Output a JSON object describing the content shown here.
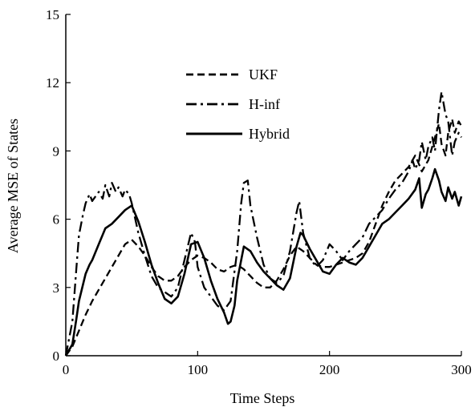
{
  "chart_data": {
    "type": "line",
    "xlabel": "Time Steps",
    "ylabel": "Average MSE of  States",
    "xlim": [
      0,
      300
    ],
    "ylim": [
      0,
      15
    ],
    "xticks": [
      "0",
      "100",
      "200",
      "300"
    ],
    "yticks": [
      "0",
      "3",
      "6",
      "9",
      "12",
      "15"
    ],
    "grid": false,
    "legend_position": "upper-left-center",
    "series": [
      {
        "name": "UKF",
        "style": "dashed",
        "color": "#000000",
        "x": [
          0,
          5,
          10,
          15,
          20,
          25,
          30,
          35,
          40,
          45,
          50,
          55,
          60,
          65,
          70,
          75,
          80,
          85,
          90,
          95,
          100,
          105,
          110,
          115,
          120,
          125,
          130,
          135,
          140,
          145,
          150,
          155,
          160,
          165,
          170,
          175,
          180,
          185,
          190,
          195,
          200,
          205,
          210,
          215,
          220,
          225,
          230,
          235,
          240,
          245,
          250,
          255,
          260,
          263,
          265,
          268,
          270,
          275,
          280,
          283,
          285,
          288,
          290,
          293,
          295,
          298,
          300
        ],
        "y": [
          0,
          0.4,
          1.1,
          1.8,
          2.4,
          2.9,
          3.4,
          3.9,
          4.4,
          4.9,
          5.1,
          4.8,
          4.4,
          3.9,
          3.5,
          3.3,
          3.3,
          3.5,
          3.9,
          4.2,
          4.4,
          4.3,
          4.1,
          3.8,
          3.7,
          3.9,
          4.0,
          3.8,
          3.5,
          3.2,
          3.0,
          3.0,
          3.3,
          3.8,
          4.4,
          4.8,
          4.6,
          4.3,
          4.0,
          3.9,
          3.9,
          4.0,
          4.1,
          4.2,
          4.3,
          4.5,
          5.0,
          5.8,
          6.6,
          7.2,
          7.7,
          8.0,
          8.3,
          8.6,
          8.8,
          8.4,
          8.1,
          8.6,
          9.6,
          10.2,
          9.3,
          8.8,
          9.8,
          10.4,
          9.8,
          10.3,
          10.1
        ]
      },
      {
        "name": "H-inf",
        "style": "dashdot",
        "color": "#000000",
        "x": [
          0,
          5,
          8,
          10,
          13,
          15,
          18,
          20,
          25,
          28,
          30,
          33,
          35,
          38,
          40,
          43,
          45,
          48,
          50,
          55,
          60,
          65,
          70,
          75,
          80,
          85,
          90,
          95,
          98,
          100,
          105,
          110,
          115,
          120,
          125,
          130,
          133,
          135,
          138,
          140,
          145,
          150,
          155,
          160,
          165,
          170,
          175,
          177,
          180,
          185,
          190,
          195,
          200,
          205,
          210,
          215,
          220,
          225,
          230,
          235,
          240,
          245,
          250,
          255,
          260,
          263,
          265,
          268,
          270,
          273,
          275,
          278,
          280,
          283,
          285,
          288,
          290,
          293,
          295,
          298,
          300
        ],
        "y": [
          0,
          1.5,
          3.8,
          5.3,
          6.2,
          6.7,
          7.1,
          6.8,
          7.2,
          6.9,
          7.5,
          7.0,
          7.6,
          7.2,
          7.4,
          7.0,
          7.3,
          7.1,
          6.7,
          5.4,
          4.4,
          3.5,
          3.0,
          2.8,
          2.6,
          3.0,
          4.2,
          5.4,
          5.0,
          3.9,
          3.0,
          2.6,
          2.2,
          2.0,
          2.4,
          4.6,
          6.7,
          7.6,
          7.7,
          6.6,
          5.2,
          4.0,
          3.4,
          3.2,
          3.5,
          4.6,
          6.3,
          6.8,
          5.4,
          4.3,
          3.9,
          4.2,
          4.9,
          4.6,
          4.2,
          4.6,
          4.9,
          5.2,
          5.8,
          6.1,
          6.4,
          6.9,
          7.3,
          7.6,
          8.1,
          8.6,
          8.2,
          8.6,
          9.4,
          8.6,
          9.2,
          9.6,
          9.0,
          10.8,
          11.6,
          10.6,
          10.3,
          8.8,
          9.4,
          9.8,
          9.6
        ]
      },
      {
        "name": "Hybrid",
        "style": "solid",
        "color": "#000000",
        "x": [
          0,
          5,
          8,
          10,
          15,
          18,
          20,
          25,
          30,
          35,
          40,
          45,
          50,
          55,
          60,
          65,
          70,
          75,
          80,
          85,
          90,
          95,
          100,
          105,
          110,
          115,
          120,
          123,
          125,
          128,
          130,
          135,
          140,
          145,
          150,
          155,
          160,
          165,
          170,
          175,
          178,
          180,
          185,
          190,
          195,
          200,
          205,
          210,
          215,
          220,
          225,
          230,
          235,
          240,
          245,
          250,
          255,
          260,
          265,
          268,
          270,
          273,
          275,
          278,
          280,
          283,
          285,
          288,
          290,
          293,
          295,
          298,
          300
        ],
        "y": [
          0,
          0.5,
          1.6,
          2.4,
          3.6,
          4.0,
          4.2,
          4.9,
          5.6,
          5.8,
          6.1,
          6.4,
          6.6,
          5.9,
          5.0,
          4.0,
          3.2,
          2.5,
          2.3,
          2.6,
          3.6,
          4.9,
          5.0,
          4.3,
          3.3,
          2.5,
          1.9,
          1.4,
          1.5,
          2.2,
          3.3,
          4.8,
          4.6,
          4.1,
          3.7,
          3.4,
          3.1,
          2.9,
          3.4,
          4.8,
          5.4,
          5.3,
          4.7,
          4.2,
          3.7,
          3.6,
          4.0,
          4.3,
          4.1,
          4.0,
          4.3,
          4.8,
          5.3,
          5.8,
          6.0,
          6.3,
          6.6,
          6.9,
          7.3,
          7.8,
          6.5,
          7.1,
          7.3,
          7.8,
          8.2,
          7.7,
          7.2,
          6.8,
          7.4,
          6.9,
          7.2,
          6.6,
          7.0
        ]
      }
    ]
  }
}
